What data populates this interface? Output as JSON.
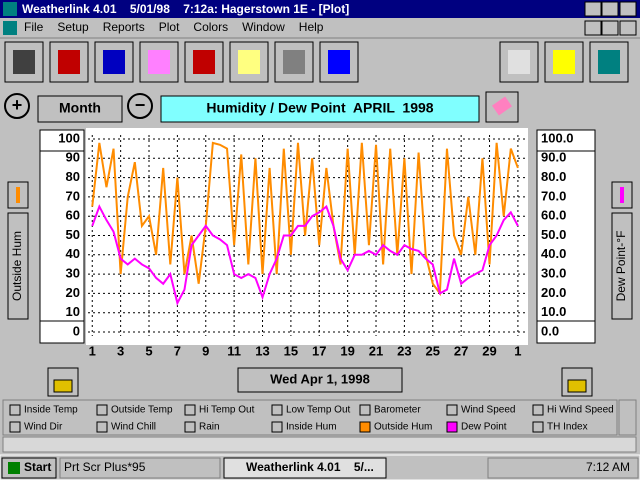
{
  "window": {
    "title": "Weatherlink 4.01    5/01/98    7:12a: Hagerstown 1E - [Plot]",
    "menu": [
      "File",
      "Setup",
      "Reports",
      "Plot",
      "Colors",
      "Window",
      "Help"
    ]
  },
  "controls": {
    "range_button": "Month",
    "date_button": "Wed Apr 1, 1998"
  },
  "chart_data": {
    "type": "line",
    "title": "Humidity / Dew Point  APRIL  1998",
    "ylabel": "Outside Hum",
    "y2label": "Dew Point-°F",
    "x": [
      1,
      1.5,
      2,
      2.5,
      3,
      3.5,
      4,
      4.5,
      5,
      5.5,
      6,
      6.5,
      7,
      7.5,
      8,
      8.5,
      9,
      9.5,
      10,
      10.5,
      11,
      11.5,
      12,
      12.5,
      13,
      13.5,
      14,
      14.5,
      15,
      15.5,
      16,
      16.5,
      17,
      17.5,
      18,
      18.5,
      19,
      19.5,
      20,
      20.5,
      21,
      21.5,
      22,
      22.5,
      23,
      23.5,
      24,
      24.5,
      25,
      25.5,
      26,
      26.5,
      27,
      27.5,
      28,
      28.5,
      29,
      29.5,
      30,
      30.5,
      31
    ],
    "series": [
      {
        "name": "Outside Hum",
        "color": "#ff8c00",
        "values": [
          65,
          98,
          75,
          95,
          30,
          70,
          88,
          55,
          60,
          40,
          85,
          35,
          80,
          30,
          50,
          25,
          55,
          98,
          97,
          95,
          45,
          92,
          35,
          90,
          30,
          85,
          30,
          95,
          40,
          98,
          50,
          90,
          45,
          85,
          55,
          35,
          95,
          40,
          98,
          45,
          97,
          35,
          95,
          40,
          90,
          30,
          93,
          40,
          25,
          20,
          95,
          50,
          40,
          70,
          40,
          90,
          35,
          98,
          60,
          95,
          85
        ]
      },
      {
        "name": "Dew Point",
        "color": "#ff00ff",
        "axis": "y2",
        "values": [
          55,
          65,
          58,
          52,
          38,
          35,
          38,
          35,
          33,
          28,
          25,
          30,
          15,
          22,
          45,
          50,
          55,
          50,
          48,
          45,
          30,
          28,
          30,
          28,
          18,
          30,
          38,
          50,
          50,
          55,
          55,
          60,
          62,
          65,
          55,
          38,
          32,
          40,
          40,
          42,
          40,
          45,
          42,
          40,
          45,
          43,
          42,
          38,
          35,
          20,
          22,
          38,
          25,
          28,
          30,
          32,
          45,
          50,
          58,
          62,
          55
        ]
      }
    ],
    "xlim": [
      0.7,
      31.5
    ],
    "xticks": [
      1,
      3,
      5,
      7,
      9,
      11,
      13,
      15,
      17,
      19,
      21,
      23,
      25,
      27,
      29,
      {
        "value": 31,
        "label": "1"
      }
    ],
    "ylim": [
      0,
      100
    ],
    "yticks": [
      0,
      10,
      20,
      30,
      40,
      50,
      60,
      70,
      80,
      90,
      100
    ],
    "y2lim": [
      0,
      100
    ],
    "y2ticks": [
      {
        "value": 0,
        "label": "0.0"
      },
      {
        "value": 10,
        "label": "10.0"
      },
      {
        "value": 20,
        "label": "20.0"
      },
      {
        "value": 30,
        "label": "30.0"
      },
      {
        "value": 40,
        "label": "40.0"
      },
      {
        "value": 50,
        "label": "50.0"
      },
      {
        "value": 60,
        "label": "60.0"
      },
      {
        "value": 70,
        "label": "70.0"
      },
      {
        "value": 80,
        "label": "80.0"
      },
      {
        "value": 90,
        "label": "90.0"
      },
      {
        "value": 100,
        "label": "100.0"
      }
    ],
    "grid": true
  },
  "legend_options": [
    "Inside Temp",
    "Outside Temp",
    "Hi Temp Out",
    "Low Temp Out",
    "Barometer",
    "Wind Speed",
    "Hi Wind Speed",
    "Wind Dir",
    "Wind Chill",
    "Rain",
    "Inside Hum",
    "TH Index"
  ],
  "taskbar": {
    "start": "Start",
    "tasks": [
      "Prt Scr Plus*95",
      "Weatherlink 4.01    5/..."
    ],
    "clock": "7:12 AM"
  }
}
